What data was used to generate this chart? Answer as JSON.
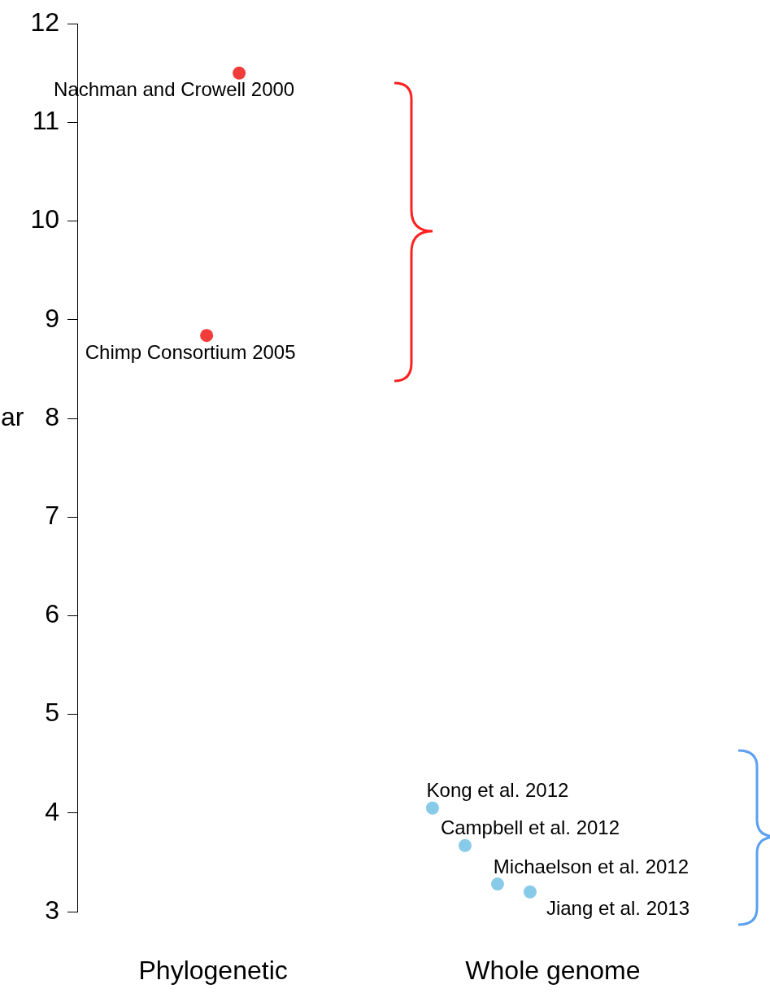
{
  "chart_data": {
    "type": "scatter",
    "ylabel": "ar",
    "categories": [
      "Phylogenetic",
      "Whole genome"
    ],
    "series": [
      {
        "color": "#f23b3b",
        "x": [
          "Phylogenetic",
          "Phylogenetic"
        ],
        "values": [
          11.5,
          8.84
        ]
      },
      {
        "color": "#88cbe8",
        "x": [
          "Whole genome",
          "Whole genome",
          "Whole genome",
          "Whole genome"
        ],
        "values": [
          4.05,
          3.67,
          3.28,
          3.2
        ]
      }
    ],
    "ylim": [
      3,
      12
    ],
    "yticks": [
      3,
      4,
      5,
      6,
      7,
      8,
      9,
      10,
      11,
      12
    ],
    "marker": "circle",
    "grid": false,
    "legend": false,
    "annotations": [
      "Nachman and Crowell 2000",
      "Chimp Consortium 2005",
      "Kong et al. 2012",
      "Campbell et al. 2012",
      "Michaelson et al. 2012",
      "Jiang et al. 2013"
    ]
  }
}
